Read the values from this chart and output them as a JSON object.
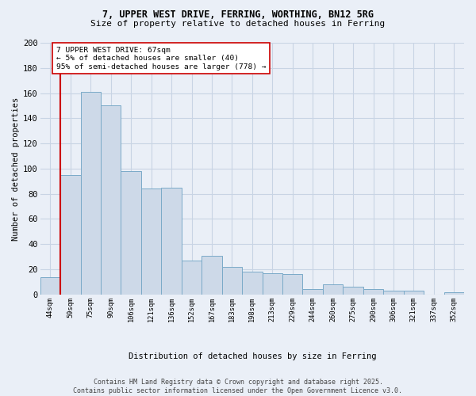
{
  "title_line1": "7, UPPER WEST DRIVE, FERRING, WORTHING, BN12 5RG",
  "title_line2": "Size of property relative to detached houses in Ferring",
  "xlabel": "Distribution of detached houses by size in Ferring",
  "ylabel": "Number of detached properties",
  "categories": [
    "44sqm",
    "59sqm",
    "75sqm",
    "90sqm",
    "106sqm",
    "121sqm",
    "136sqm",
    "152sqm",
    "167sqm",
    "183sqm",
    "198sqm",
    "213sqm",
    "229sqm",
    "244sqm",
    "260sqm",
    "275sqm",
    "290sqm",
    "306sqm",
    "321sqm",
    "337sqm",
    "352sqm"
  ],
  "values": [
    14,
    95,
    161,
    150,
    98,
    84,
    85,
    27,
    31,
    22,
    18,
    17,
    16,
    4,
    8,
    6,
    4,
    3,
    3,
    0,
    2
  ],
  "bar_color": "#cdd9e8",
  "bar_edge_color": "#7aaac8",
  "grid_color": "#c8d4e4",
  "background_color": "#eaeff7",
  "vline_x": 1.0,
  "vline_color": "#cc0000",
  "annotation_text": "7 UPPER WEST DRIVE: 67sqm\n← 5% of detached houses are smaller (40)\n95% of semi-detached houses are larger (778) →",
  "annotation_box_color": "#ffffff",
  "annotation_box_edge": "#cc0000",
  "footer_text": "Contains HM Land Registry data © Crown copyright and database right 2025.\nContains public sector information licensed under the Open Government Licence v3.0.",
  "ylim": [
    0,
    200
  ],
  "yticks": [
    0,
    20,
    40,
    60,
    80,
    100,
    120,
    140,
    160,
    180,
    200
  ]
}
